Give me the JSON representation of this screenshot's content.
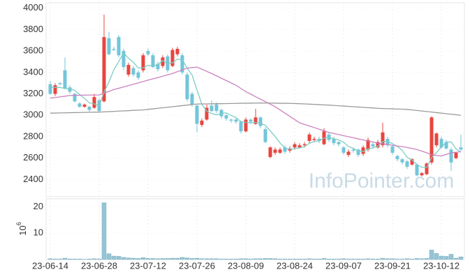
{
  "chart_data": [
    {
      "type": "candlestick",
      "categories": [
        "23-06-14",
        null,
        null,
        null,
        null,
        null,
        null,
        null,
        null,
        null,
        "23-06-28",
        null,
        null,
        null,
        null,
        null,
        null,
        null,
        null,
        null,
        "23-07-12",
        null,
        null,
        null,
        null,
        null,
        null,
        null,
        null,
        null,
        "23-07-26",
        null,
        null,
        null,
        null,
        null,
        null,
        null,
        null,
        null,
        "23-08-09",
        null,
        null,
        null,
        null,
        null,
        null,
        null,
        null,
        null,
        "23-08-24",
        null,
        null,
        null,
        null,
        null,
        null,
        null,
        null,
        null,
        "23-09-07",
        null,
        null,
        null,
        null,
        null,
        null,
        null,
        null,
        null,
        "23-09-21",
        null,
        null,
        null,
        null,
        null,
        null,
        null,
        null,
        null,
        "23-10-12",
        null,
        null,
        null,
        null
      ],
      "open": [
        3290,
        3200,
        3300,
        3420,
        3260,
        3200,
        3110,
        3080,
        3080,
        3070,
        3140,
        3130,
        3720,
        3620,
        3730,
        3600,
        3380,
        3440,
        3400,
        3420,
        3600,
        3560,
        3480,
        3460,
        3550,
        3460,
        3570,
        3560,
        3380,
        3200,
        3090,
        2910,
        2960,
        3090,
        3100,
        3050,
        3000,
        2960,
        2960,
        2940,
        2850,
        2960,
        2920,
        2980,
        2870,
        2610,
        2650,
        2650,
        2700,
        2670,
        2700,
        2700,
        2720,
        2760,
        2770,
        2780,
        2730,
        2820,
        2780,
        2750,
        2700,
        2630,
        2680,
        2680,
        2640,
        2680,
        2730,
        2700,
        2720,
        2780,
        2710,
        2620,
        2590,
        2570,
        2540,
        2540,
        2440,
        2450,
        2560,
        2720,
        2780,
        2750,
        2680,
        2600,
        2700
      ],
      "high": [
        3320,
        3300,
        3310,
        3540,
        3280,
        3210,
        3120,
        3110,
        3090,
        3200,
        3160,
        3940,
        3780,
        3640,
        3750,
        3620,
        3490,
        3460,
        3420,
        3580,
        3620,
        3580,
        3500,
        3560,
        3570,
        3630,
        3640,
        3580,
        3400,
        3220,
        3100,
        2970,
        3100,
        3140,
        3120,
        3060,
        3010,
        2970,
        2980,
        2950,
        2980,
        2970,
        3060,
        2990,
        2890,
        2710,
        2700,
        2700,
        2720,
        2710,
        2750,
        2740,
        2750,
        2840,
        2800,
        2800,
        2880,
        2840,
        2800,
        2760,
        2710,
        2680,
        2700,
        2690,
        2720,
        2790,
        2750,
        2770,
        2930,
        2800,
        2720,
        2630,
        2600,
        2580,
        2600,
        2550,
        2470,
        2560,
        2990,
        2840,
        2800,
        2770,
        2700,
        2660,
        2820
      ],
      "low": [
        3190,
        3180,
        3280,
        3240,
        3200,
        3120,
        3070,
        3070,
        3030,
        3060,
        3030,
        3120,
        3560,
        3600,
        3540,
        3420,
        3360,
        3360,
        3330,
        3400,
        3550,
        3440,
        3410,
        3440,
        3400,
        3450,
        3550,
        3380,
        3130,
        3080,
        2840,
        2890,
        2950,
        3030,
        3020,
        2970,
        2950,
        2930,
        2920,
        2830,
        2840,
        2920,
        2910,
        2880,
        2740,
        2600,
        2630,
        2640,
        2640,
        2650,
        2680,
        2690,
        2700,
        2740,
        2750,
        2740,
        2720,
        2750,
        2720,
        2710,
        2630,
        2610,
        2650,
        2610,
        2620,
        2660,
        2690,
        2690,
        2700,
        2700,
        2630,
        2570,
        2540,
        2500,
        2530,
        2430,
        2430,
        2440,
        2540,
        2700,
        2690,
        2680,
        2480,
        2590,
        2670
      ],
      "close": [
        3200,
        3280,
        3290,
        3250,
        3220,
        3130,
        3080,
        3100,
        3050,
        3170,
        3040,
        3730,
        3570,
        3610,
        3560,
        3450,
        3470,
        3380,
        3350,
        3560,
        3570,
        3450,
        3430,
        3540,
        3420,
        3610,
        3620,
        3400,
        3150,
        3100,
        2920,
        2950,
        3070,
        3040,
        3040,
        2990,
        2970,
        2950,
        2940,
        2850,
        2960,
        2940,
        2980,
        2900,
        2750,
        2700,
        2680,
        2680,
        2660,
        2690,
        2730,
        2720,
        2730,
        2820,
        2780,
        2760,
        2850,
        2770,
        2740,
        2730,
        2650,
        2660,
        2670,
        2630,
        2700,
        2770,
        2710,
        2750,
        2840,
        2720,
        2650,
        2590,
        2560,
        2520,
        2590,
        2440,
        2460,
        2550,
        2980,
        2830,
        2700,
        2690,
        2560,
        2650,
        2680
      ],
      "up_color": "#e8453f",
      "down_color": "#72c5da",
      "series": [
        {
          "color": "#7ccdc4",
          "values": [
            3260,
            3260,
            3260,
            3250,
            3248,
            3234,
            3194,
            3156,
            3116,
            3106,
            3088,
            3218,
            3312,
            3424,
            3502,
            3584,
            3532,
            3494,
            3442,
            3442,
            3466,
            3462,
            3472,
            3510,
            3482,
            3490,
            3524,
            3518,
            3440,
            3376,
            3238,
            3104,
            3038,
            3016,
            3004,
            3018,
            3022,
            2998,
            2978,
            2940,
            2934,
            2928,
            2934,
            2926,
            2906,
            2854,
            2802,
            2742,
            2694,
            2682,
            2688,
            2696,
            2706,
            2738,
            2756,
            2762,
            2788,
            2796,
            2780,
            2770,
            2748,
            2710,
            2690,
            2668,
            2662,
            2686,
            2696,
            2712,
            2754,
            2758,
            2734,
            2710,
            2672,
            2608,
            2582,
            2540,
            2514,
            2512,
            2604,
            2652,
            2704,
            2750,
            2752,
            2686,
            2656
          ]
        },
        {
          "color": "#cc82bf",
          "values": [
            3160,
            3166,
            3172,
            3178,
            3185,
            3186,
            3187,
            3188,
            3189,
            3189,
            3190,
            3207,
            3223,
            3240,
            3252,
            3265,
            3278,
            3290,
            3302,
            3315,
            3328,
            3340,
            3352,
            3365,
            3378,
            3390,
            3407,
            3423,
            3440,
            3445,
            3450,
            3430,
            3410,
            3390,
            3368,
            3346,
            3324,
            3302,
            3280,
            3250,
            3220,
            3197,
            3173,
            3150,
            3127,
            3103,
            3080,
            3050,
            3020,
            2990,
            2960,
            2930,
            2915,
            2900,
            2885,
            2870,
            2855,
            2840,
            2830,
            2820,
            2810,
            2800,
            2790,
            2780,
            2770,
            2760,
            2750,
            2740,
            2733,
            2727,
            2720,
            2713,
            2707,
            2700,
            2690,
            2680,
            2665,
            2650,
            2630,
            2625,
            2620,
            2635,
            2650,
            2655,
            2660
          ]
        },
        {
          "color": "#9a9a9a",
          "values": [
            3020,
            3021,
            3022,
            3023,
            3024,
            3025,
            3026,
            3027,
            3028,
            3029,
            3030,
            3032,
            3034,
            3036,
            3039,
            3041,
            3043,
            3046,
            3048,
            3050,
            3055,
            3060,
            3065,
            3070,
            3075,
            3080,
            3085,
            3090,
            3095,
            3100,
            3105,
            3106,
            3106,
            3107,
            3108,
            3108,
            3109,
            3110,
            3111,
            3112,
            3113,
            3113,
            3114,
            3115,
            3114,
            3114,
            3113,
            3112,
            3112,
            3111,
            3110,
            3108,
            3106,
            3104,
            3102,
            3099,
            3097,
            3095,
            3092,
            3089,
            3086,
            3083,
            3080,
            3077,
            3074,
            3071,
            3068,
            3065,
            3063,
            3062,
            3060,
            3058,
            3057,
            3055,
            3050,
            3045,
            3040,
            3035,
            3030,
            3025,
            3020,
            3015,
            3010,
            3005,
            3000
          ]
        }
      ],
      "ylim": [
        2240,
        4050
      ],
      "yticks": [
        2400,
        2600,
        2800,
        3000,
        3200,
        3400,
        3600,
        3800,
        4000
      ],
      "grid": true,
      "watermark": "InfoPointer.com"
    },
    {
      "type": "bar",
      "values": [
        0.3,
        0.2,
        0.2,
        0.5,
        0.2,
        0.2,
        0.2,
        0.1,
        0.2,
        0.3,
        0.2,
        21.5,
        2.2,
        1.3,
        1.2,
        0.8,
        0.6,
        0.5,
        0.4,
        0.7,
        0.4,
        0.4,
        0.3,
        0.4,
        0.4,
        0.5,
        0.5,
        0.8,
        0.6,
        0.4,
        0.5,
        0.3,
        0.3,
        0.3,
        0.3,
        0.2,
        0.2,
        0.2,
        0.2,
        0.3,
        0.3,
        0.2,
        0.3,
        0.3,
        0.4,
        0.4,
        0.3,
        0.2,
        0.2,
        0.2,
        0.2,
        0.2,
        0.2,
        0.3,
        0.2,
        0.2,
        0.4,
        0.2,
        0.2,
        0.2,
        0.3,
        0.2,
        0.2,
        0.2,
        0.2,
        0.3,
        0.2,
        0.2,
        0.5,
        0.3,
        0.3,
        0.2,
        0.2,
        0.3,
        0.2,
        0.4,
        0.3,
        0.4,
        3.6,
        2.3,
        1.3,
        1.2,
        2.0,
        0.5,
        1.0
      ],
      "color": "#96c4d4",
      "ylabel": {
        "text": "10",
        "superscript": "6"
      },
      "ylim": [
        0,
        23
      ],
      "yticks": [
        10,
        20
      ],
      "grid": true
    }
  ]
}
